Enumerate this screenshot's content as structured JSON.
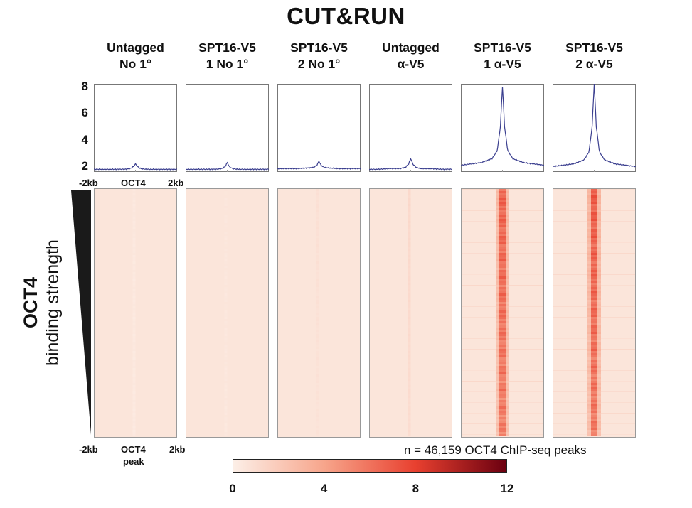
{
  "figure": {
    "title": "CUT&RUN",
    "y_label_line1": "OCT4",
    "y_label_line2": "binding strength",
    "peaks_note": "n = 46,159 OCT4 ChIP-seq peaks"
  },
  "columns": [
    {
      "line1": "Untagged",
      "line2": "No 1°"
    },
    {
      "line1": "SPT16-V5",
      "line2": "1 No 1°"
    },
    {
      "line1": "SPT16-V5",
      "line2": "2 No 1°"
    },
    {
      "line1": "Untagged",
      "line2": "α-V5"
    },
    {
      "line1": "SPT16-V5",
      "line2": "1 α-V5"
    },
    {
      "line1": "SPT16-V5",
      "line2": "2 α-V5"
    }
  ],
  "profile_axis": {
    "x_left": "-2kb",
    "x_center": "OCT4",
    "x_right": "2kb",
    "y_ticks": [
      "8",
      "6",
      "4",
      "2"
    ]
  },
  "heatmap_axis": {
    "x_left": "-2kb",
    "x_center": "OCT4",
    "x_center_line2": "peak",
    "x_right": "2kb"
  },
  "colorbar": {
    "ticks": [
      "0",
      "4",
      "8",
      "12"
    ],
    "min": 0,
    "max": 12,
    "colors": [
      "#fcefe7",
      "#f7a58b",
      "#e8402f",
      "#6b0010"
    ]
  },
  "chart_data": {
    "type": "line",
    "x_range_kb": [
      -2,
      2
    ],
    "ylim": [
      1.6,
      8.2
    ],
    "y_ticks": [
      2,
      4,
      6,
      8
    ],
    "x": [
      -2,
      -1.5,
      -1,
      -0.5,
      -0.25,
      -0.1,
      0,
      0.1,
      0.25,
      0.5,
      1,
      1.5,
      2
    ],
    "series": [
      {
        "name": "Untagged No 1°",
        "values": [
          1.8,
          1.8,
          1.8,
          1.8,
          1.85,
          2.0,
          2.2,
          2.0,
          1.85,
          1.8,
          1.8,
          1.8,
          1.8
        ]
      },
      {
        "name": "SPT16-V5 1 No 1°",
        "values": [
          1.8,
          1.8,
          1.8,
          1.8,
          1.85,
          2.0,
          2.3,
          2.0,
          1.85,
          1.8,
          1.8,
          1.8,
          1.8
        ]
      },
      {
        "name": "SPT16-V5 2 No 1°",
        "values": [
          1.85,
          1.85,
          1.85,
          1.9,
          1.95,
          2.1,
          2.4,
          2.1,
          1.95,
          1.9,
          1.85,
          1.85,
          1.85
        ]
      },
      {
        "name": "Untagged α-V5",
        "values": [
          1.8,
          1.8,
          1.85,
          1.85,
          1.95,
          2.2,
          2.6,
          2.2,
          1.95,
          1.85,
          1.85,
          1.8,
          1.8
        ]
      },
      {
        "name": "SPT16-V5 1 α-V5",
        "values": [
          2.1,
          2.2,
          2.3,
          2.6,
          3.2,
          5.0,
          8.0,
          5.0,
          3.2,
          2.6,
          2.3,
          2.2,
          2.1
        ]
      },
      {
        "name": "SPT16-V5 2 α-V5",
        "values": [
          2.0,
          2.1,
          2.2,
          2.5,
          3.1,
          5.0,
          8.2,
          5.0,
          3.1,
          2.5,
          2.2,
          2.1,
          2.0
        ]
      }
    ],
    "heatmap_center_signal": [
      0.4,
      0.5,
      0.8,
      1.2,
      6.5,
      6.8
    ]
  }
}
